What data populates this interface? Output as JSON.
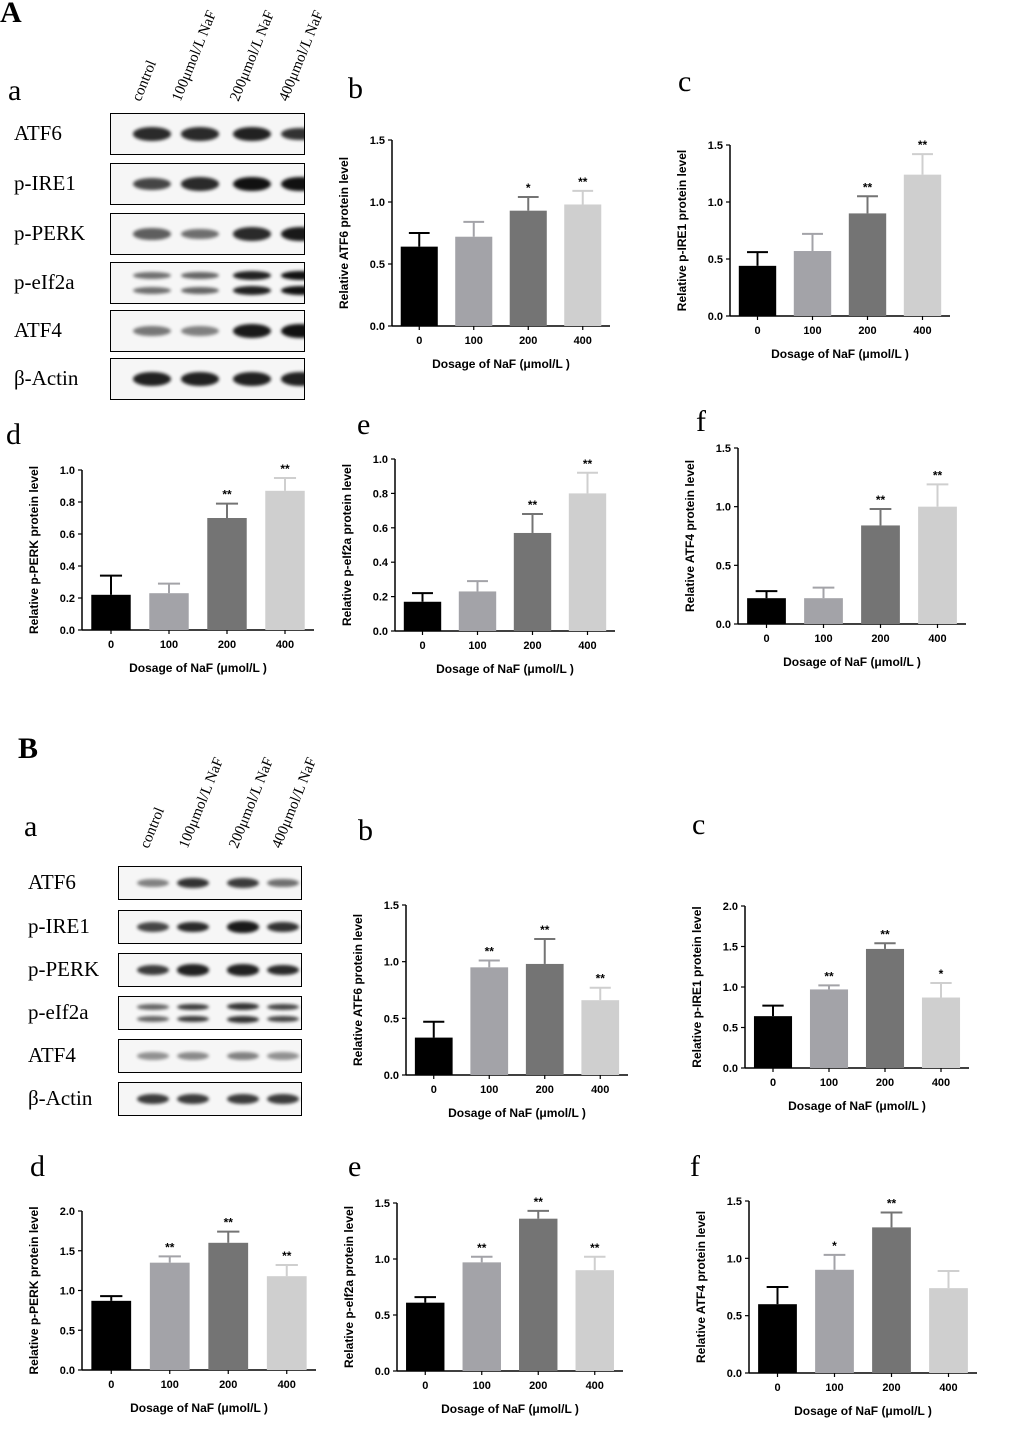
{
  "figure": {
    "sections": [
      {
        "letter": "A",
        "blot": {
          "panel_letter": "a",
          "lanes": [
            "control",
            "100μmol/L NaF",
            "200μmol/L NaF",
            "400μmol/L NaF"
          ],
          "rows": [
            {
              "label": "ATF6",
              "intensities": [
                0.85,
                0.85,
                0.9,
                0.8
              ],
              "double": false
            },
            {
              "label": "p-IRE1",
              "intensities": [
                0.7,
                0.85,
                1.0,
                1.0
              ],
              "double": false
            },
            {
              "label": "p-PERK",
              "intensities": [
                0.55,
                0.45,
                0.85,
                0.95
              ],
              "double": false
            },
            {
              "label": "p-eIf2a",
              "intensities": [
                0.45,
                0.5,
                0.9,
                1.0
              ],
              "double": true
            },
            {
              "label": "ATF4",
              "intensities": [
                0.4,
                0.35,
                0.95,
                1.0
              ],
              "double": false
            },
            {
              "label": "β-Actin",
              "intensities": [
                0.9,
                0.9,
                0.9,
                0.9
              ],
              "double": false
            }
          ]
        }
      },
      {
        "letter": "B",
        "blot": {
          "panel_letter": "a",
          "lanes": [
            "control",
            "100μmol/L NaF",
            "200μmol/L NaF",
            "400μmol/L NaF"
          ],
          "rows": [
            {
              "label": "ATF6",
              "intensities": [
                0.35,
                0.8,
                0.75,
                0.45
              ],
              "double": false
            },
            {
              "label": "p-IRE1",
              "intensities": [
                0.7,
                0.85,
                0.95,
                0.8
              ],
              "double": false
            },
            {
              "label": "p-PERK",
              "intensities": [
                0.75,
                0.9,
                0.9,
                0.85
              ],
              "double": false
            },
            {
              "label": "p-eIf2a",
              "intensities": [
                0.5,
                0.75,
                0.8,
                0.7
              ],
              "double": true
            },
            {
              "label": "ATF4",
              "intensities": [
                0.25,
                0.3,
                0.35,
                0.25
              ],
              "double": false
            },
            {
              "label": "β-Actin",
              "intensities": [
                0.75,
                0.75,
                0.75,
                0.75
              ],
              "double": false
            }
          ]
        }
      }
    ]
  },
  "chart_data": [
    {
      "panel": "A-b",
      "letter": "b",
      "type": "bar",
      "categories": [
        "0",
        "100",
        "200",
        "400"
      ],
      "values": [
        0.64,
        0.72,
        0.93,
        0.98
      ],
      "errors": [
        0.11,
        0.12,
        0.11,
        0.11
      ],
      "significance": [
        "",
        "",
        "*",
        "**"
      ],
      "ylabel": "Relative ATF6 protein level",
      "xlabel": "Dosage of NaF (μmol/L )",
      "ylim": [
        0,
        1.5
      ],
      "yticks": [
        "0.0",
        "0.5",
        "1.0",
        "1.5"
      ],
      "colors": [
        "#000000",
        "#a3a3a8",
        "#747474",
        "#cfcfcf"
      ]
    },
    {
      "panel": "A-c",
      "letter": "c",
      "type": "bar",
      "categories": [
        "0",
        "100",
        "200",
        "400"
      ],
      "values": [
        0.44,
        0.57,
        0.9,
        1.24
      ],
      "errors": [
        0.12,
        0.15,
        0.15,
        0.18
      ],
      "significance": [
        "",
        "",
        "**",
        "**"
      ],
      "ylabel": "Relative p-IRE1 protein level",
      "xlabel": "Dosage of NaF (μmol/L )",
      "ylim": [
        0,
        1.5
      ],
      "yticks": [
        "0.0",
        "0.5",
        "1.0",
        "1.5"
      ],
      "colors": [
        "#000000",
        "#a3a3a8",
        "#747474",
        "#cfcfcf"
      ]
    },
    {
      "panel": "A-d",
      "letter": "d",
      "type": "bar",
      "categories": [
        "0",
        "100",
        "200",
        "400"
      ],
      "values": [
        0.22,
        0.23,
        0.7,
        0.87
      ],
      "errors": [
        0.12,
        0.06,
        0.09,
        0.08
      ],
      "significance": [
        "",
        "",
        "**",
        "**"
      ],
      "ylabel": "Relative p-PERK protein level",
      "xlabel": "Dosage of NaF (μmol/L )",
      "ylim": [
        0,
        1.0
      ],
      "yticks": [
        "0.0",
        "0.2",
        "0.4",
        "0.6",
        "0.8",
        "1.0"
      ],
      "colors": [
        "#000000",
        "#a3a3a8",
        "#747474",
        "#cfcfcf"
      ]
    },
    {
      "panel": "A-e",
      "letter": "e",
      "type": "bar",
      "categories": [
        "0",
        "100",
        "200",
        "400"
      ],
      "values": [
        0.17,
        0.23,
        0.57,
        0.8
      ],
      "errors": [
        0.05,
        0.06,
        0.11,
        0.12
      ],
      "significance": [
        "",
        "",
        "**",
        "**"
      ],
      "ylabel": "Relative p-eIf2a protein level",
      "xlabel": "Dosage of NaF (μmol/L )",
      "ylim": [
        0,
        1.0
      ],
      "yticks": [
        "0.0",
        "0.2",
        "0.4",
        "0.6",
        "0.8",
        "1.0"
      ],
      "colors": [
        "#000000",
        "#a3a3a8",
        "#747474",
        "#cfcfcf"
      ]
    },
    {
      "panel": "A-f",
      "letter": "f",
      "type": "bar",
      "categories": [
        "0",
        "100",
        "200",
        "400"
      ],
      "values": [
        0.22,
        0.22,
        0.84,
        1.0
      ],
      "errors": [
        0.06,
        0.09,
        0.14,
        0.19
      ],
      "significance": [
        "",
        "",
        "**",
        "**"
      ],
      "ylabel": "Relative ATF4 protein level",
      "xlabel": "Dosage of NaF (μmol/L )",
      "ylim": [
        0,
        1.5
      ],
      "yticks": [
        "0.0",
        "0.5",
        "1.0",
        "1.5"
      ],
      "colors": [
        "#000000",
        "#a3a3a8",
        "#747474",
        "#cfcfcf"
      ]
    },
    {
      "panel": "B-b",
      "letter": "b",
      "type": "bar",
      "categories": [
        "0",
        "100",
        "200",
        "400"
      ],
      "values": [
        0.33,
        0.95,
        0.98,
        0.66
      ],
      "errors": [
        0.14,
        0.06,
        0.22,
        0.11
      ],
      "significance": [
        "",
        "**",
        "**",
        "**"
      ],
      "ylabel": "Relative ATF6 protein level",
      "xlabel": "Dosage of NaF (μmol/L )",
      "ylim": [
        0,
        1.5
      ],
      "yticks": [
        "0.0",
        "0.5",
        "1.0",
        "1.5"
      ],
      "colors": [
        "#000000",
        "#a3a3a8",
        "#747474",
        "#cfcfcf"
      ]
    },
    {
      "panel": "B-c",
      "letter": "c",
      "type": "bar",
      "categories": [
        "0",
        "100",
        "200",
        "400"
      ],
      "values": [
        0.64,
        0.97,
        1.47,
        0.87
      ],
      "errors": [
        0.13,
        0.05,
        0.07,
        0.18
      ],
      "significance": [
        "",
        "**",
        "**",
        "*"
      ],
      "ylabel": "Relative p-IRE1 protein level",
      "xlabel": "Dosage of NaF (μmol/L )",
      "ylim": [
        0,
        2.0
      ],
      "yticks": [
        "0.0",
        "0.5",
        "1.0",
        "1.5",
        "2.0"
      ],
      "colors": [
        "#000000",
        "#a3a3a8",
        "#747474",
        "#cfcfcf"
      ]
    },
    {
      "panel": "B-d",
      "letter": "d",
      "type": "bar",
      "categories": [
        "0",
        "100",
        "200",
        "400"
      ],
      "values": [
        0.87,
        1.35,
        1.6,
        1.18
      ],
      "errors": [
        0.06,
        0.08,
        0.14,
        0.14
      ],
      "significance": [
        "",
        "**",
        "**",
        "**"
      ],
      "ylabel": "Relative p-PERK protein level",
      "xlabel": "Dosage of NaF (μmol/L )",
      "ylim": [
        0,
        2.0
      ],
      "yticks": [
        "0.0",
        "0.5",
        "1.0",
        "1.5",
        "2.0"
      ],
      "colors": [
        "#000000",
        "#a3a3a8",
        "#747474",
        "#cfcfcf"
      ]
    },
    {
      "panel": "B-e",
      "letter": "e",
      "type": "bar",
      "categories": [
        "0",
        "100",
        "200",
        "400"
      ],
      "values": [
        0.61,
        0.97,
        1.36,
        0.9
      ],
      "errors": [
        0.05,
        0.05,
        0.07,
        0.12
      ],
      "significance": [
        "",
        "**",
        "**",
        "**"
      ],
      "ylabel": "Relative p-eIf2a protein level",
      "xlabel": "Dosage of NaF (μmol/L )",
      "ylim": [
        0,
        1.5
      ],
      "yticks": [
        "0.0",
        "0.5",
        "1.0",
        "1.5"
      ],
      "colors": [
        "#000000",
        "#a3a3a8",
        "#747474",
        "#cfcfcf"
      ]
    },
    {
      "panel": "B-f",
      "letter": "f",
      "type": "bar",
      "categories": [
        "0",
        "100",
        "200",
        "400"
      ],
      "values": [
        0.6,
        0.9,
        1.27,
        0.74
      ],
      "errors": [
        0.15,
        0.13,
        0.13,
        0.15
      ],
      "significance": [
        "",
        "*",
        "**",
        ""
      ],
      "ylabel": "Relative ATF4 protein level",
      "xlabel": "Dosage of NaF (μmol/L )",
      "ylim": [
        0,
        1.5
      ],
      "yticks": [
        "0.0",
        "0.5",
        "1.0",
        "1.5"
      ],
      "colors": [
        "#000000",
        "#a3a3a8",
        "#747474",
        "#cfcfcf"
      ]
    }
  ]
}
